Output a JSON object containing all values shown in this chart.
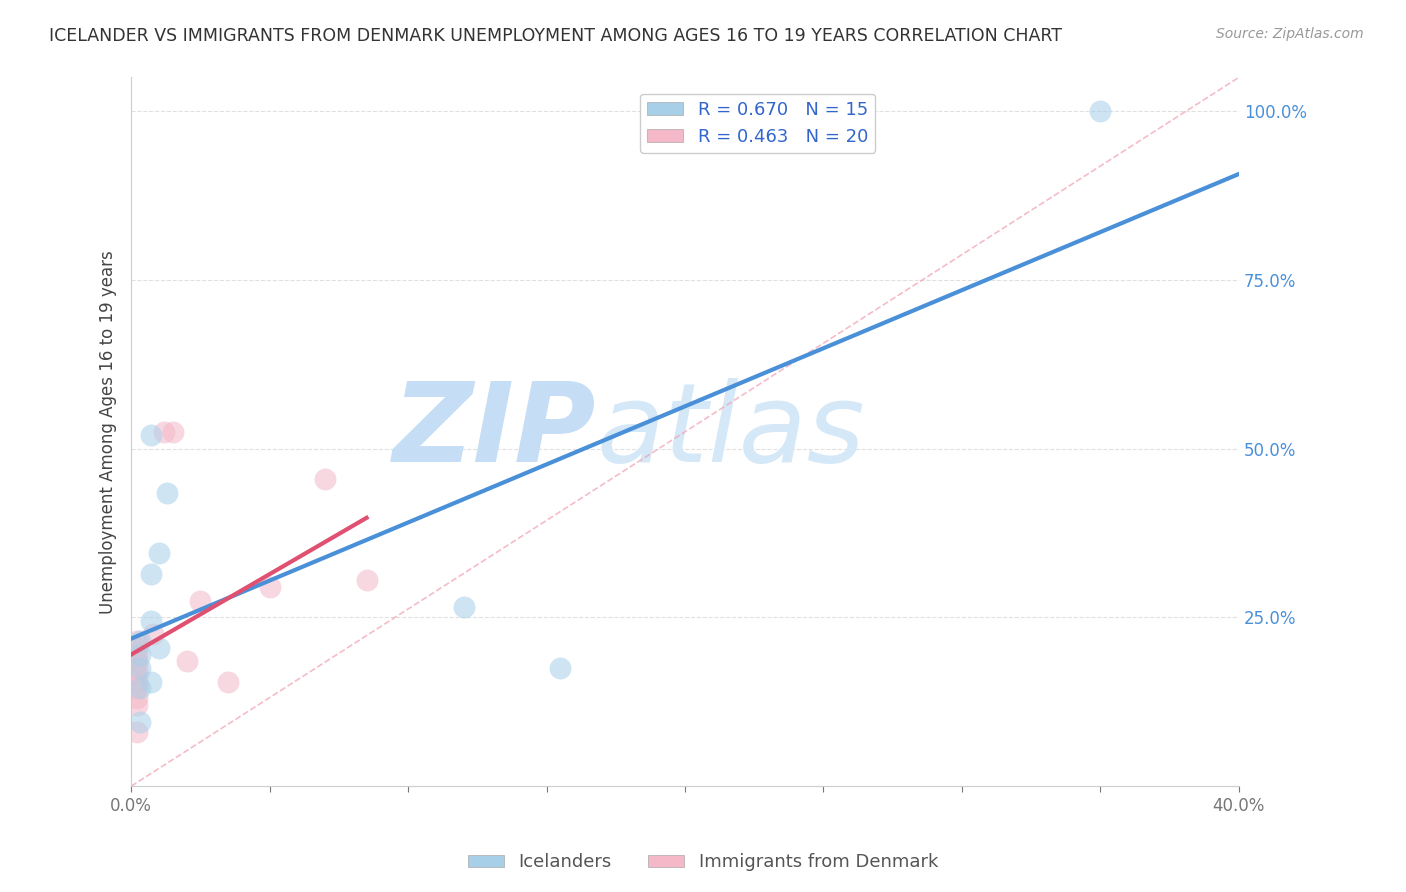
{
  "title": "ICELANDER VS IMMIGRANTS FROM DENMARK UNEMPLOYMENT AMONG AGES 16 TO 19 YEARS CORRELATION CHART",
  "source": "Source: ZipAtlas.com",
  "ylabel": "Unemployment Among Ages 16 to 19 years",
  "xlim": [
    0.0,
    0.4
  ],
  "ylim": [
    0.0,
    1.05
  ],
  "x_ticks": [
    0.0,
    0.05,
    0.1,
    0.15,
    0.2,
    0.25,
    0.3,
    0.35,
    0.4
  ],
  "x_tick_labels": [
    "0.0%",
    "",
    "",
    "",
    "",
    "",
    "",
    "",
    "40.0%"
  ],
  "y_ticks": [
    0.25,
    0.5,
    0.75,
    1.0
  ],
  "y_tick_labels": [
    "25.0%",
    "50.0%",
    "75.0%",
    "100.0%"
  ],
  "icelanders_x": [
    0.007,
    0.003,
    0.003,
    0.013,
    0.01,
    0.007,
    0.003,
    0.003,
    0.007,
    0.01,
    0.007,
    0.003,
    0.12,
    0.155,
    0.35
  ],
  "icelanders_y": [
    0.52,
    0.215,
    0.175,
    0.435,
    0.345,
    0.315,
    0.195,
    0.145,
    0.245,
    0.205,
    0.155,
    0.095,
    0.265,
    0.175,
    1.0
  ],
  "denmark_x": [
    0.002,
    0.002,
    0.002,
    0.002,
    0.002,
    0.002,
    0.002,
    0.002,
    0.002,
    0.002,
    0.002,
    0.008,
    0.012,
    0.015,
    0.05,
    0.07,
    0.085,
    0.02,
    0.025,
    0.035
  ],
  "denmark_y": [
    0.215,
    0.205,
    0.195,
    0.185,
    0.175,
    0.165,
    0.155,
    0.145,
    0.13,
    0.12,
    0.08,
    0.225,
    0.525,
    0.525,
    0.295,
    0.455,
    0.305,
    0.185,
    0.275,
    0.155
  ],
  "icelanders_R": 0.67,
  "icelanders_N": 15,
  "denmark_R": 0.463,
  "denmark_N": 20,
  "blue_scatter_color": "#a8cfe8",
  "pink_scatter_color": "#f4b8c8",
  "blue_line_color": "#4a90d9",
  "pink_line_color": "#e05070",
  "diag_color": "#e8b8c0",
  "legend_R_color": "#3366cc",
  "watermark_zip": "ZIP",
  "watermark_atlas": "atlas",
  "watermark_color": "#ddeeff",
  "background_color": "#ffffff",
  "grid_color": "#e0e0e0"
}
